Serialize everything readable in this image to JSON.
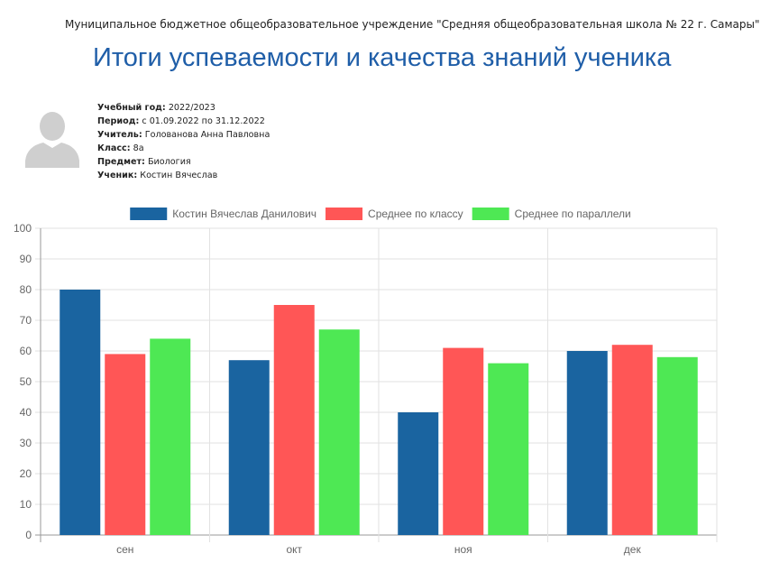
{
  "header": {
    "school": "Муниципальное бюджетное общеобразовательное учреждение \"Средняя общеобразовательная школа № 22 г. Самары\"",
    "title": "Итоги успеваемости и качества знаний ученика"
  },
  "info": {
    "year_label": "Учебный год:",
    "year_value": "2022/2023",
    "period_label": "Период:",
    "period_value": "с 01.09.2022 по 31.12.2022",
    "teacher_label": "Учитель:",
    "teacher_value": "Голованова Анна Павловна",
    "class_label": "Класс:",
    "class_value": "8а",
    "subject_label": "Предмет:",
    "subject_value": "Биология",
    "student_label": "Ученик:",
    "student_value": "Костин Вячеслав"
  },
  "avatar_icon": "user-silhouette-icon",
  "chart_data": {
    "type": "bar",
    "categories": [
      "сен",
      "окт",
      "ноя",
      "дек"
    ],
    "series": [
      {
        "name": "Костин Вячеслав Данилович",
        "color": "#1a64a0",
        "values": [
          80,
          57,
          40,
          60
        ]
      },
      {
        "name": "Среднее по классу",
        "color": "#ff5656",
        "values": [
          59,
          75,
          61,
          62
        ]
      },
      {
        "name": "Среднее по параллели",
        "color": "#4ee854",
        "values": [
          64,
          67,
          56,
          58
        ]
      }
    ],
    "ylim": [
      0,
      100
    ],
    "yticks": [
      0,
      10,
      20,
      30,
      40,
      50,
      60,
      70,
      80,
      90,
      100
    ],
    "grid": true,
    "legend": "top-center"
  }
}
